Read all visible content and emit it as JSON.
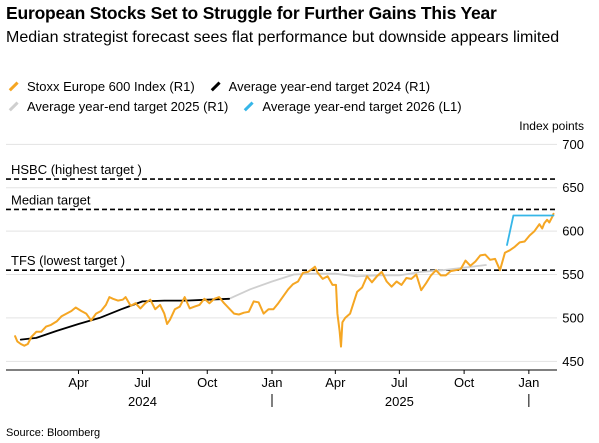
{
  "title": "European Stocks Set to Struggle for Further Gains This Year",
  "subtitle": "Median strategist forecast sees flat performance but downside appears limited",
  "source": "Source: Bloomberg",
  "legend": [
    {
      "label": "Stoxx Europe 600 Index (R1)",
      "color": "#f5a623"
    },
    {
      "label": "Average year-end target 2024 (R1)",
      "color": "#000000"
    },
    {
      "label": "Average year-end target 2025 (R1)",
      "color": "#cfcfcf"
    },
    {
      "label": "Average year-end target 2026 (L1)",
      "color": "#36b6e8"
    }
  ],
  "chart_data": {
    "type": "line",
    "y_axis_label": "Index points",
    "ylim": [
      440,
      705
    ],
    "yticks": [
      450,
      500,
      550,
      600,
      650,
      700
    ],
    "xlim": [
      "2023-12-20",
      "2026-02-10"
    ],
    "month_ticks": [
      {
        "label": "Apr",
        "date": "2024-04-01"
      },
      {
        "label": "Jul",
        "date": "2024-07-01"
      },
      {
        "label": "Oct",
        "date": "2024-10-01"
      },
      {
        "label": "Jan",
        "date": "2025-01-01"
      },
      {
        "label": "Apr",
        "date": "2025-04-01"
      },
      {
        "label": "Jul",
        "date": "2025-07-01"
      },
      {
        "label": "Oct",
        "date": "2025-10-01"
      },
      {
        "label": "Jan",
        "date": "2026-01-01"
      }
    ],
    "year_labels": [
      {
        "label": "2024",
        "date": "2024-07-01"
      },
      {
        "label": "2025",
        "date": "2025-07-01"
      }
    ],
    "year_dividers": [
      "2025-01-01",
      "2026-01-01"
    ],
    "reference_lines": [
      {
        "label": "HSBC (highest target )",
        "value": 660
      },
      {
        "label": "Median target",
        "value": 625
      },
      {
        "label": "TFS (lowest target )",
        "value": 555
      }
    ],
    "series": [
      {
        "name": "Stoxx Europe 600 Index (R1)",
        "color": "#f5a623",
        "points": [
          [
            "2024-01-02",
            479
          ],
          [
            "2024-01-05",
            473
          ],
          [
            "2024-01-10",
            470
          ],
          [
            "2024-01-15",
            468
          ],
          [
            "2024-01-20",
            470
          ],
          [
            "2024-01-25",
            478
          ],
          [
            "2024-02-01",
            484
          ],
          [
            "2024-02-08",
            484
          ],
          [
            "2024-02-15",
            490
          ],
          [
            "2024-02-22",
            492
          ],
          [
            "2024-03-01",
            496
          ],
          [
            "2024-03-08",
            502
          ],
          [
            "2024-03-15",
            505
          ],
          [
            "2024-03-22",
            508
          ],
          [
            "2024-03-28",
            512
          ],
          [
            "2024-04-05",
            508
          ],
          [
            "2024-04-12",
            505
          ],
          [
            "2024-04-19",
            497
          ],
          [
            "2024-04-26",
            505
          ],
          [
            "2024-05-03",
            508
          ],
          [
            "2024-05-10",
            515
          ],
          [
            "2024-05-15",
            524
          ],
          [
            "2024-05-20",
            522
          ],
          [
            "2024-05-27",
            520
          ],
          [
            "2024-06-03",
            521
          ],
          [
            "2024-06-07",
            524
          ],
          [
            "2024-06-14",
            514
          ],
          [
            "2024-06-21",
            517
          ],
          [
            "2024-06-28",
            511
          ],
          [
            "2024-07-05",
            517
          ],
          [
            "2024-07-12",
            521
          ],
          [
            "2024-07-19",
            510
          ],
          [
            "2024-07-26",
            515
          ],
          [
            "2024-08-01",
            505
          ],
          [
            "2024-08-05",
            493
          ],
          [
            "2024-08-09",
            498
          ],
          [
            "2024-08-16",
            510
          ],
          [
            "2024-08-23",
            513
          ],
          [
            "2024-08-30",
            524
          ],
          [
            "2024-09-06",
            511
          ],
          [
            "2024-09-13",
            513
          ],
          [
            "2024-09-20",
            515
          ],
          [
            "2024-09-27",
            522
          ],
          [
            "2024-10-04",
            517
          ],
          [
            "2024-10-11",
            522
          ],
          [
            "2024-10-18",
            524
          ],
          [
            "2024-10-25",
            517
          ],
          [
            "2024-11-01",
            511
          ],
          [
            "2024-11-08",
            505
          ],
          [
            "2024-11-15",
            504
          ],
          [
            "2024-11-22",
            506
          ],
          [
            "2024-11-29",
            507
          ],
          [
            "2024-12-06",
            519
          ],
          [
            "2024-12-13",
            518
          ],
          [
            "2024-12-20",
            505
          ],
          [
            "2024-12-27",
            510
          ],
          [
            "2025-01-03",
            510
          ],
          [
            "2025-01-10",
            517
          ],
          [
            "2025-01-17",
            525
          ],
          [
            "2025-01-24",
            533
          ],
          [
            "2025-01-31",
            539
          ],
          [
            "2025-02-07",
            542
          ],
          [
            "2025-02-14",
            552
          ],
          [
            "2025-02-21",
            553
          ],
          [
            "2025-02-28",
            557
          ],
          [
            "2025-03-03",
            559
          ],
          [
            "2025-03-07",
            552
          ],
          [
            "2025-03-14",
            545
          ],
          [
            "2025-03-21",
            548
          ],
          [
            "2025-03-28",
            538
          ],
          [
            "2025-04-02",
            538
          ],
          [
            "2025-04-04",
            505
          ],
          [
            "2025-04-07",
            485
          ],
          [
            "2025-04-09",
            467
          ],
          [
            "2025-04-11",
            495
          ],
          [
            "2025-04-15",
            500
          ],
          [
            "2025-04-22",
            505
          ],
          [
            "2025-04-28",
            520
          ],
          [
            "2025-05-02",
            530
          ],
          [
            "2025-05-09",
            535
          ],
          [
            "2025-05-16",
            548
          ],
          [
            "2025-05-23",
            541
          ],
          [
            "2025-05-30",
            548
          ],
          [
            "2025-06-06",
            553
          ],
          [
            "2025-06-13",
            542
          ],
          [
            "2025-06-20",
            536
          ],
          [
            "2025-06-27",
            542
          ],
          [
            "2025-07-04",
            538
          ],
          [
            "2025-07-11",
            546
          ],
          [
            "2025-07-18",
            545
          ],
          [
            "2025-07-25",
            550
          ],
          [
            "2025-08-01",
            532
          ],
          [
            "2025-08-08",
            540
          ],
          [
            "2025-08-15",
            549
          ],
          [
            "2025-08-22",
            555
          ],
          [
            "2025-08-29",
            549
          ],
          [
            "2025-09-05",
            549
          ],
          [
            "2025-09-12",
            554
          ],
          [
            "2025-09-19",
            555
          ],
          [
            "2025-09-26",
            556
          ],
          [
            "2025-10-03",
            566
          ],
          [
            "2025-10-10",
            560
          ],
          [
            "2025-10-17",
            565
          ],
          [
            "2025-10-24",
            572
          ],
          [
            "2025-10-31",
            573
          ],
          [
            "2025-11-07",
            567
          ],
          [
            "2025-11-14",
            568
          ],
          [
            "2025-11-21",
            555
          ],
          [
            "2025-11-28",
            575
          ],
          [
            "2025-12-05",
            578
          ],
          [
            "2025-12-12",
            582
          ],
          [
            "2025-12-19",
            587
          ],
          [
            "2025-12-26",
            588
          ],
          [
            "2026-01-02",
            595
          ],
          [
            "2026-01-09",
            600
          ],
          [
            "2026-01-16",
            608
          ],
          [
            "2026-01-20",
            603
          ],
          [
            "2026-01-23",
            609
          ],
          [
            "2026-01-27",
            613
          ],
          [
            "2026-01-30",
            610
          ],
          [
            "2026-02-03",
            616
          ],
          [
            "2026-02-05",
            620
          ]
        ]
      },
      {
        "name": "Average year-end target 2024 (R1)",
        "color": "#000000",
        "points": [
          [
            "2024-01-10",
            475
          ],
          [
            "2024-02-01",
            477
          ],
          [
            "2024-03-01",
            485
          ],
          [
            "2024-04-01",
            493
          ],
          [
            "2024-05-01",
            500
          ],
          [
            "2024-06-01",
            510
          ],
          [
            "2024-07-01",
            519
          ],
          [
            "2024-08-01",
            520
          ],
          [
            "2024-09-01",
            520
          ],
          [
            "2024-10-01",
            521
          ],
          [
            "2024-11-01",
            522
          ]
        ]
      },
      {
        "name": "Average year-end target 2025 (R1)",
        "color": "#cfcfcf",
        "points": [
          [
            "2024-11-01",
            522
          ],
          [
            "2024-12-01",
            533
          ],
          [
            "2025-01-01",
            542
          ],
          [
            "2025-02-01",
            550
          ],
          [
            "2025-03-01",
            551
          ],
          [
            "2025-04-01",
            551
          ],
          [
            "2025-05-01",
            548
          ],
          [
            "2025-06-01",
            549
          ],
          [
            "2025-07-01",
            549
          ],
          [
            "2025-08-01",
            553
          ],
          [
            "2025-09-01",
            555
          ],
          [
            "2025-10-01",
            558
          ],
          [
            "2025-11-01",
            561
          ]
        ]
      },
      {
        "name": "Average year-end target 2026 (L1)",
        "color": "#36b6e8",
        "points": [
          [
            "2025-12-01",
            584
          ],
          [
            "2025-12-10",
            618
          ],
          [
            "2026-02-05",
            618
          ]
        ]
      }
    ]
  }
}
